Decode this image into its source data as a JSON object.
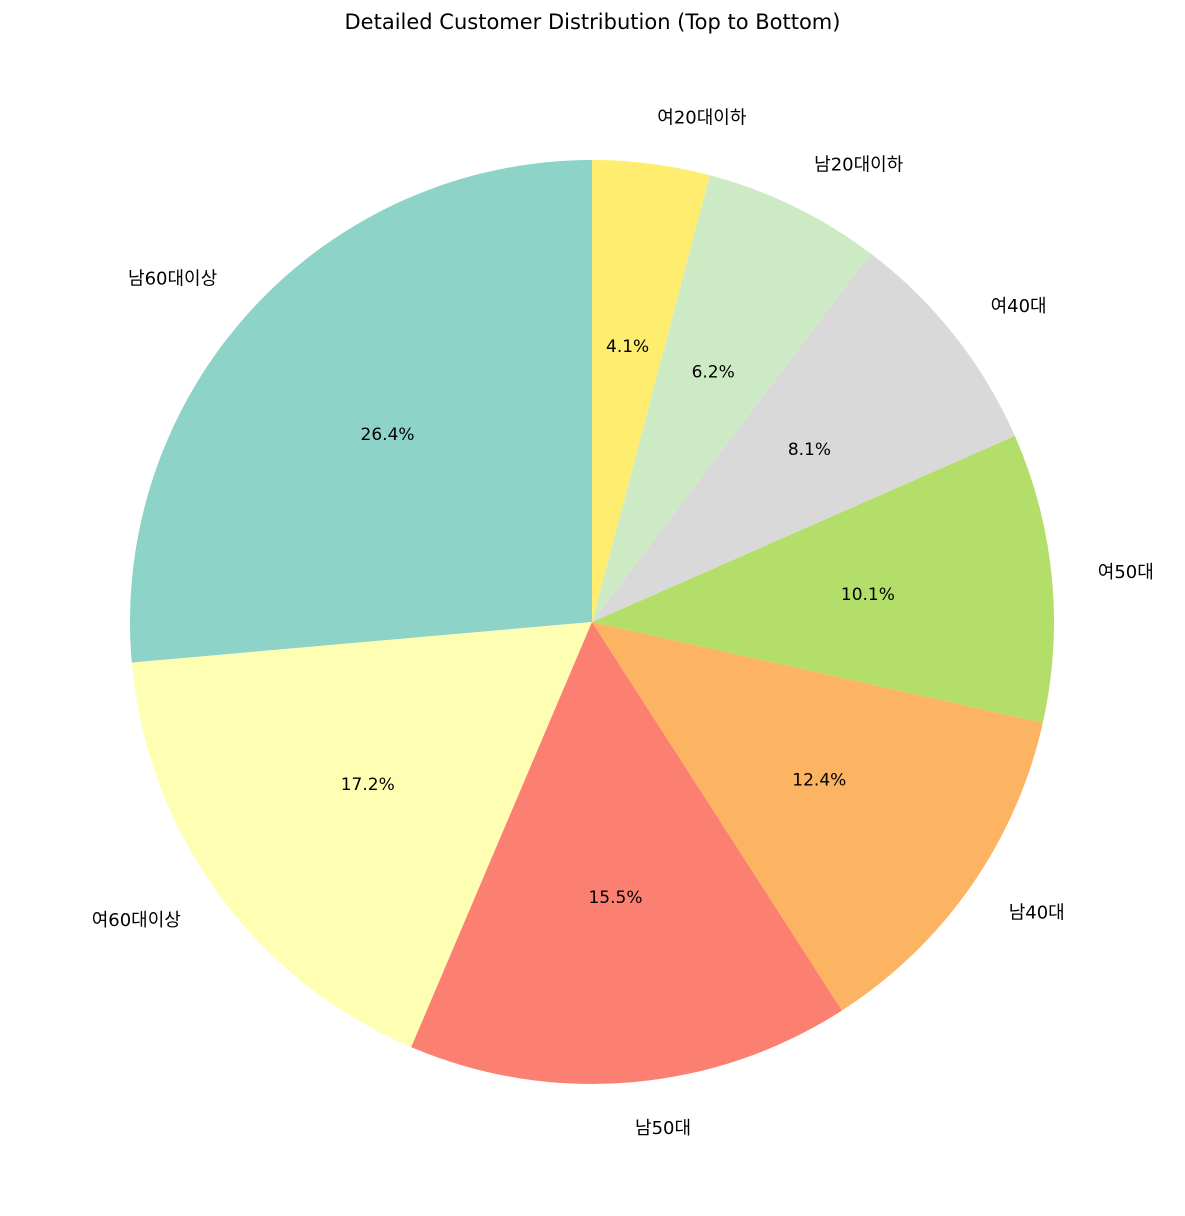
{
  "chart_data": {
    "type": "pie",
    "title": "Detailed Customer Distribution (Top to Bottom)",
    "start_angle": 90,
    "direction": "counterclockwise",
    "slices": [
      {
        "label": "남60대이상",
        "value": 26.4,
        "pct_label": "26.4%",
        "color": "#8dd3c7"
      },
      {
        "label": "여60대이상",
        "value": 17.2,
        "pct_label": "17.2%",
        "color": "#ffffb3"
      },
      {
        "label": "남50대",
        "value": 15.5,
        "pct_label": "15.5%",
        "color": "#fb8072"
      },
      {
        "label": "남40대",
        "value": 12.4,
        "pct_label": "12.4%",
        "color": "#fdb462"
      },
      {
        "label": "여50대",
        "value": 10.1,
        "pct_label": "10.1%",
        "color": "#b3de69"
      },
      {
        "label": "여40대",
        "value": 8.1,
        "pct_label": "8.1%",
        "color": "#d9d9d9"
      },
      {
        "label": "남20대이하",
        "value": 6.2,
        "pct_label": "6.2%",
        "color": "#ccebc5"
      },
      {
        "label": "여20대이하",
        "value": 4.1,
        "pct_label": "4.1%",
        "color": "#ffed6f"
      }
    ]
  }
}
